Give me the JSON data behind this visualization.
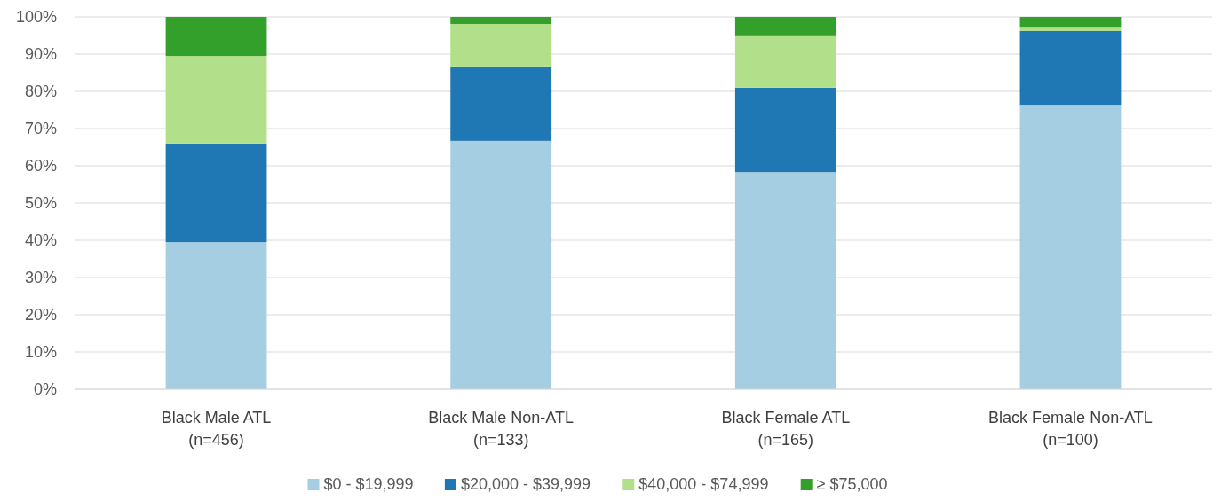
{
  "chart_data": {
    "type": "bar",
    "stacked": true,
    "categories": [
      "Black Male ATL\n(n=456)",
      "Black Male Non-ATL\n(n=133)",
      "Black Female ATL\n(n=165)",
      "Black Female Non-ATL\n(n=100)"
    ],
    "series": [
      {
        "name": "$0 - $19,999",
        "color": "#a6cee3",
        "values": [
          39.5,
          66.7,
          58.3,
          76.4
        ]
      },
      {
        "name": "$20,000 - $39,999",
        "color": "#1f78b4",
        "values": [
          26.5,
          20,
          22.7,
          19.8
        ]
      },
      {
        "name": "$40,000 - $74,999",
        "color": "#b2df8a",
        "values": [
          23.5,
          11.4,
          13.8,
          0.9
        ]
      },
      {
        "name": "≥ $75,000",
        "color": "#33a02c",
        "values": [
          10.5,
          1.9,
          5.2,
          2.9
        ]
      }
    ],
    "ylim": [
      0,
      100
    ],
    "yticks": [
      {
        "value": 0,
        "label": "0%"
      },
      {
        "value": 10,
        "label": "10%"
      },
      {
        "value": 20,
        "label": "20%"
      },
      {
        "value": 30,
        "label": "30%"
      },
      {
        "value": 40,
        "label": "40%"
      },
      {
        "value": 50,
        "label": "50%"
      },
      {
        "value": 60,
        "label": "60%"
      },
      {
        "value": 70,
        "label": "70%"
      },
      {
        "value": 80,
        "label": "80%"
      },
      {
        "value": 90,
        "label": "90%"
      },
      {
        "value": 100,
        "label": "100%"
      }
    ],
    "grid": "y",
    "legend": "bottom"
  }
}
